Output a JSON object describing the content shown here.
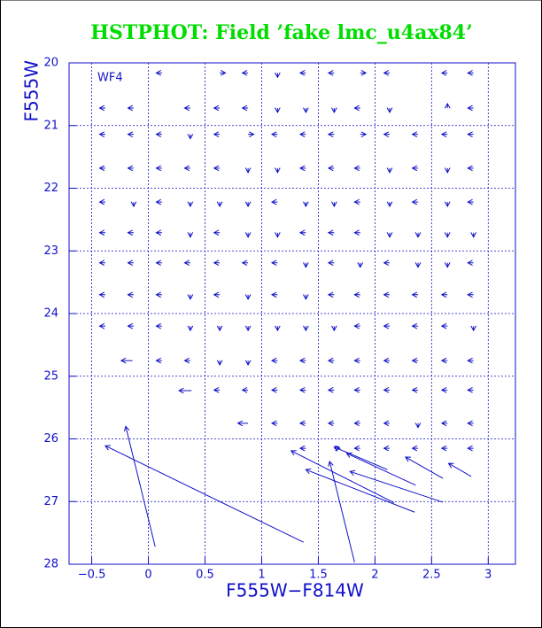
{
  "chart_data": {
    "type": "quiver",
    "title": "HSTPHOT: Field ’fake lmc_u4ax84’",
    "x_label": "F555W−F814W",
    "y_label": "F555W",
    "annotation": "WF4",
    "color": "#1010c8",
    "title_color": "#00dd00",
    "grid": true,
    "xlim": [
      -0.7,
      3.24
    ],
    "ylim": [
      28,
      20
    ],
    "xticks": [
      {
        "value": -0.5,
        "label": "−0.5"
      },
      0,
      0.5,
      1,
      1.5,
      2,
      2.5,
      3
    ],
    "yticks": [
      20,
      21,
      22,
      23,
      24,
      25,
      26,
      27,
      28
    ],
    "arrows": [
      {
        "x": 0.12,
        "y": 20.16,
        "u": -0.05,
        "v": 0
      },
      {
        "x": 0.63,
        "y": 20.16,
        "u": 0.05,
        "v": 0
      },
      {
        "x": 0.88,
        "y": 20.16,
        "u": -0.05,
        "v": 0
      },
      {
        "x": 1.14,
        "y": 20.16,
        "u": 0,
        "v": 0.07
      },
      {
        "x": 1.39,
        "y": 20.16,
        "u": -0.05,
        "v": 0
      },
      {
        "x": 1.64,
        "y": 20.16,
        "u": -0.05,
        "v": 0
      },
      {
        "x": 1.87,
        "y": 20.16,
        "u": 0.05,
        "v": 0
      },
      {
        "x": 2.13,
        "y": 20.16,
        "u": -0.05,
        "v": 0
      },
      {
        "x": 2.64,
        "y": 20.16,
        "u": -0.05,
        "v": 0
      },
      {
        "x": 2.87,
        "y": 20.16,
        "u": -0.05,
        "v": 0
      },
      {
        "x": -0.38,
        "y": 20.72,
        "u": -0.05,
        "v": 0
      },
      {
        "x": -0.13,
        "y": 20.72,
        "u": -0.05,
        "v": 0
      },
      {
        "x": 0.37,
        "y": 20.72,
        "u": -0.05,
        "v": 0
      },
      {
        "x": 0.63,
        "y": 20.72,
        "u": -0.05,
        "v": 0
      },
      {
        "x": 0.88,
        "y": 20.72,
        "u": -0.05,
        "v": 0
      },
      {
        "x": 1.14,
        "y": 20.72,
        "u": 0,
        "v": 0.07
      },
      {
        "x": 1.39,
        "y": 20.72,
        "u": 0,
        "v": 0.07
      },
      {
        "x": 1.64,
        "y": 20.72,
        "u": 0,
        "v": 0.07
      },
      {
        "x": 1.87,
        "y": 20.72,
        "u": -0.05,
        "v": 0
      },
      {
        "x": 2.13,
        "y": 20.72,
        "u": 0,
        "v": 0.07
      },
      {
        "x": 2.64,
        "y": 20.72,
        "u": 0,
        "v": -0.07
      },
      {
        "x": 2.87,
        "y": 20.72,
        "u": -0.05,
        "v": 0
      },
      {
        "x": -0.38,
        "y": 21.14,
        "u": -0.05,
        "v": 0
      },
      {
        "x": -0.13,
        "y": 21.14,
        "u": -0.05,
        "v": 0
      },
      {
        "x": 0.12,
        "y": 21.14,
        "u": -0.05,
        "v": 0
      },
      {
        "x": 0.37,
        "y": 21.14,
        "u": 0,
        "v": 0.07
      },
      {
        "x": 0.63,
        "y": 21.14,
        "u": -0.05,
        "v": 0
      },
      {
        "x": 0.88,
        "y": 21.14,
        "u": 0.05,
        "v": 0
      },
      {
        "x": 1.14,
        "y": 21.14,
        "u": -0.05,
        "v": 0
      },
      {
        "x": 1.39,
        "y": 21.14,
        "u": -0.05,
        "v": 0
      },
      {
        "x": 1.64,
        "y": 21.14,
        "u": -0.05,
        "v": 0
      },
      {
        "x": 1.87,
        "y": 21.14,
        "u": 0.05,
        "v": 0
      },
      {
        "x": 2.13,
        "y": 21.14,
        "u": -0.05,
        "v": 0
      },
      {
        "x": 2.38,
        "y": 21.14,
        "u": -0.05,
        "v": 0
      },
      {
        "x": 2.64,
        "y": 21.14,
        "u": -0.05,
        "v": 0
      },
      {
        "x": 2.87,
        "y": 21.14,
        "u": -0.05,
        "v": 0
      },
      {
        "x": -0.38,
        "y": 21.68,
        "u": -0.05,
        "v": 0
      },
      {
        "x": -0.13,
        "y": 21.68,
        "u": -0.05,
        "v": 0
      },
      {
        "x": 0.12,
        "y": 21.68,
        "u": -0.05,
        "v": 0
      },
      {
        "x": 0.37,
        "y": 21.68,
        "u": -0.05,
        "v": 0
      },
      {
        "x": 0.63,
        "y": 21.68,
        "u": -0.05,
        "v": 0
      },
      {
        "x": 0.88,
        "y": 21.68,
        "u": 0,
        "v": 0.07
      },
      {
        "x": 1.14,
        "y": 21.68,
        "u": 0,
        "v": 0.07
      },
      {
        "x": 1.39,
        "y": 21.68,
        "u": -0.05,
        "v": 0
      },
      {
        "x": 1.64,
        "y": 21.68,
        "u": -0.05,
        "v": 0
      },
      {
        "x": 1.87,
        "y": 21.68,
        "u": -0.05,
        "v": 0
      },
      {
        "x": 2.13,
        "y": 21.68,
        "u": 0,
        "v": 0.07
      },
      {
        "x": 2.38,
        "y": 21.68,
        "u": -0.05,
        "v": 0
      },
      {
        "x": 2.64,
        "y": 21.68,
        "u": 0,
        "v": 0.07
      },
      {
        "x": 2.87,
        "y": 21.68,
        "u": -0.05,
        "v": 0
      },
      {
        "x": -0.38,
        "y": 22.22,
        "u": -0.05,
        "v": 0
      },
      {
        "x": -0.13,
        "y": 22.22,
        "u": 0,
        "v": 0.07
      },
      {
        "x": 0.12,
        "y": 22.22,
        "u": -0.05,
        "v": 0
      },
      {
        "x": 0.37,
        "y": 22.22,
        "u": 0,
        "v": 0.07
      },
      {
        "x": 0.63,
        "y": 22.22,
        "u": 0,
        "v": 0.07
      },
      {
        "x": 0.88,
        "y": 22.22,
        "u": 0,
        "v": 0.07
      },
      {
        "x": 1.14,
        "y": 22.22,
        "u": -0.05,
        "v": 0
      },
      {
        "x": 1.39,
        "y": 22.22,
        "u": 0,
        "v": 0.07
      },
      {
        "x": 1.64,
        "y": 22.22,
        "u": 0,
        "v": 0.07
      },
      {
        "x": 1.87,
        "y": 22.22,
        "u": -0.05,
        "v": 0
      },
      {
        "x": 2.13,
        "y": 22.22,
        "u": 0,
        "v": 0.07
      },
      {
        "x": 2.38,
        "y": 22.22,
        "u": -0.05,
        "v": 0
      },
      {
        "x": 2.64,
        "y": 22.22,
        "u": 0,
        "v": 0.07
      },
      {
        "x": 2.87,
        "y": 22.22,
        "u": -0.05,
        "v": 0
      },
      {
        "x": -0.38,
        "y": 22.71,
        "u": -0.05,
        "v": 0
      },
      {
        "x": -0.13,
        "y": 22.71,
        "u": -0.05,
        "v": 0
      },
      {
        "x": 0.12,
        "y": 22.71,
        "u": -0.05,
        "v": 0
      },
      {
        "x": 0.37,
        "y": 22.71,
        "u": 0,
        "v": 0.07
      },
      {
        "x": 0.63,
        "y": 22.71,
        "u": -0.05,
        "v": 0
      },
      {
        "x": 0.88,
        "y": 22.71,
        "u": 0,
        "v": 0.07
      },
      {
        "x": 1.14,
        "y": 22.71,
        "u": 0,
        "v": 0.07
      },
      {
        "x": 1.39,
        "y": 22.71,
        "u": -0.05,
        "v": 0
      },
      {
        "x": 1.64,
        "y": 22.71,
        "u": -0.05,
        "v": 0
      },
      {
        "x": 1.87,
        "y": 22.71,
        "u": -0.05,
        "v": 0
      },
      {
        "x": 2.13,
        "y": 22.71,
        "u": 0,
        "v": 0.07
      },
      {
        "x": 2.38,
        "y": 22.71,
        "u": 0,
        "v": 0.07
      },
      {
        "x": 2.64,
        "y": 22.71,
        "u": 0,
        "v": 0.07
      },
      {
        "x": 2.87,
        "y": 22.71,
        "u": 0,
        "v": 0.07
      },
      {
        "x": -0.38,
        "y": 23.19,
        "u": -0.05,
        "v": 0
      },
      {
        "x": -0.13,
        "y": 23.19,
        "u": -0.05,
        "v": 0
      },
      {
        "x": 0.12,
        "y": 23.19,
        "u": -0.05,
        "v": 0
      },
      {
        "x": 0.37,
        "y": 23.19,
        "u": -0.05,
        "v": 0
      },
      {
        "x": 0.63,
        "y": 23.19,
        "u": -0.05,
        "v": 0
      },
      {
        "x": 0.88,
        "y": 23.19,
        "u": -0.05,
        "v": 0
      },
      {
        "x": 1.14,
        "y": 23.19,
        "u": -0.05,
        "v": 0
      },
      {
        "x": 1.39,
        "y": 23.19,
        "u": 0,
        "v": 0.07
      },
      {
        "x": 1.64,
        "y": 23.19,
        "u": -0.05,
        "v": 0
      },
      {
        "x": 1.87,
        "y": 23.19,
        "u": 0,
        "v": 0.07
      },
      {
        "x": 2.13,
        "y": 23.19,
        "u": -0.05,
        "v": 0
      },
      {
        "x": 2.38,
        "y": 23.19,
        "u": 0,
        "v": 0.07
      },
      {
        "x": 2.64,
        "y": 23.19,
        "u": 0,
        "v": 0.07
      },
      {
        "x": 2.87,
        "y": 23.19,
        "u": -0.05,
        "v": 0
      },
      {
        "x": -0.38,
        "y": 23.7,
        "u": -0.05,
        "v": 0
      },
      {
        "x": -0.13,
        "y": 23.7,
        "u": -0.05,
        "v": 0
      },
      {
        "x": 0.12,
        "y": 23.7,
        "u": -0.05,
        "v": 0
      },
      {
        "x": 0.37,
        "y": 23.7,
        "u": 0,
        "v": 0.07
      },
      {
        "x": 0.63,
        "y": 23.7,
        "u": -0.05,
        "v": 0
      },
      {
        "x": 0.88,
        "y": 23.7,
        "u": 0,
        "v": 0.07
      },
      {
        "x": 1.14,
        "y": 23.7,
        "u": -0.05,
        "v": 0
      },
      {
        "x": 1.39,
        "y": 23.7,
        "u": 0,
        "v": 0.07
      },
      {
        "x": 1.64,
        "y": 23.7,
        "u": -0.05,
        "v": 0
      },
      {
        "x": 1.87,
        "y": 23.7,
        "u": -0.05,
        "v": 0
      },
      {
        "x": 2.13,
        "y": 23.7,
        "u": -0.05,
        "v": 0
      },
      {
        "x": 2.38,
        "y": 23.7,
        "u": -0.05,
        "v": 0
      },
      {
        "x": 2.64,
        "y": 23.7,
        "u": -0.05,
        "v": 0
      },
      {
        "x": 2.87,
        "y": 23.7,
        "u": -0.05,
        "v": 0
      },
      {
        "x": -0.38,
        "y": 24.2,
        "u": -0.05,
        "v": 0
      },
      {
        "x": -0.13,
        "y": 24.2,
        "u": -0.05,
        "v": 0
      },
      {
        "x": 0.12,
        "y": 24.2,
        "u": -0.05,
        "v": 0
      },
      {
        "x": 0.37,
        "y": 24.2,
        "u": 0,
        "v": 0.07
      },
      {
        "x": 0.63,
        "y": 24.2,
        "u": 0,
        "v": 0.07
      },
      {
        "x": 0.88,
        "y": 24.2,
        "u": 0,
        "v": 0.07
      },
      {
        "x": 1.14,
        "y": 24.2,
        "u": 0,
        "v": 0.07
      },
      {
        "x": 1.39,
        "y": 24.2,
        "u": 0,
        "v": 0.07
      },
      {
        "x": 1.64,
        "y": 24.2,
        "u": 0,
        "v": 0.07
      },
      {
        "x": 1.87,
        "y": 24.2,
        "u": -0.05,
        "v": 0
      },
      {
        "x": 2.13,
        "y": 24.2,
        "u": -0.05,
        "v": 0
      },
      {
        "x": 2.38,
        "y": 24.2,
        "u": -0.05,
        "v": 0
      },
      {
        "x": 2.64,
        "y": 24.2,
        "u": -0.05,
        "v": 0
      },
      {
        "x": 2.87,
        "y": 24.2,
        "u": 0,
        "v": 0.07
      },
      {
        "x": -0.14,
        "y": 24.75,
        "u": -0.1,
        "v": 0
      },
      {
        "x": 0.12,
        "y": 24.75,
        "u": -0.05,
        "v": 0
      },
      {
        "x": 0.37,
        "y": 24.75,
        "u": -0.05,
        "v": 0
      },
      {
        "x": 0.63,
        "y": 24.75,
        "u": 0,
        "v": 0.07
      },
      {
        "x": 0.88,
        "y": 24.75,
        "u": 0,
        "v": 0.07
      },
      {
        "x": 1.14,
        "y": 24.75,
        "u": -0.05,
        "v": 0
      },
      {
        "x": 1.39,
        "y": 24.75,
        "u": -0.05,
        "v": 0
      },
      {
        "x": 1.64,
        "y": 24.75,
        "u": -0.05,
        "v": 0
      },
      {
        "x": 1.87,
        "y": 24.75,
        "u": -0.05,
        "v": 0
      },
      {
        "x": 2.13,
        "y": 24.75,
        "u": -0.05,
        "v": 0
      },
      {
        "x": 2.38,
        "y": 24.75,
        "u": -0.05,
        "v": 0
      },
      {
        "x": 2.64,
        "y": 24.75,
        "u": -0.05,
        "v": 0
      },
      {
        "x": 2.87,
        "y": 24.75,
        "u": -0.05,
        "v": 0
      },
      {
        "x": 0.38,
        "y": 25.23,
        "u": -0.11,
        "v": 0
      },
      {
        "x": 0.63,
        "y": 25.22,
        "u": -0.05,
        "v": 0
      },
      {
        "x": 0.88,
        "y": 25.22,
        "u": -0.05,
        "v": 0
      },
      {
        "x": 1.14,
        "y": 25.22,
        "u": -0.05,
        "v": 0
      },
      {
        "x": 1.39,
        "y": 25.22,
        "u": -0.05,
        "v": 0
      },
      {
        "x": 1.64,
        "y": 25.22,
        "u": -0.05,
        "v": 0
      },
      {
        "x": 1.87,
        "y": 25.22,
        "u": -0.05,
        "v": 0
      },
      {
        "x": 2.13,
        "y": 25.22,
        "u": -0.05,
        "v": 0
      },
      {
        "x": 2.38,
        "y": 25.22,
        "u": -0.05,
        "v": 0
      },
      {
        "x": 2.64,
        "y": 25.22,
        "u": -0.05,
        "v": 0
      },
      {
        "x": 2.87,
        "y": 25.22,
        "u": -0.05,
        "v": 0
      },
      {
        "x": 0.88,
        "y": 25.75,
        "u": -0.09,
        "v": 0
      },
      {
        "x": 1.14,
        "y": 25.75,
        "u": -0.05,
        "v": 0
      },
      {
        "x": 1.39,
        "y": 25.75,
        "u": -0.05,
        "v": 0
      },
      {
        "x": 1.64,
        "y": 25.75,
        "u": -0.05,
        "v": 0
      },
      {
        "x": 1.87,
        "y": 25.75,
        "u": -0.05,
        "v": 0
      },
      {
        "x": 2.13,
        "y": 25.75,
        "u": -0.05,
        "v": 0
      },
      {
        "x": 2.38,
        "y": 25.75,
        "u": 0,
        "v": 0.07
      },
      {
        "x": 2.64,
        "y": 25.75,
        "u": -0.05,
        "v": 0
      },
      {
        "x": 2.87,
        "y": 25.75,
        "u": -0.05,
        "v": 0
      },
      {
        "x": 1.39,
        "y": 26.15,
        "u": -0.05,
        "v": 0
      },
      {
        "x": 1.64,
        "y": 26.15,
        "u": 0.05,
        "v": 0
      },
      {
        "x": 1.87,
        "y": 26.15,
        "u": -0.05,
        "v": 0
      },
      {
        "x": 2.13,
        "y": 26.15,
        "u": -0.05,
        "v": 0
      },
      {
        "x": 2.38,
        "y": 26.15,
        "u": -0.05,
        "v": 0
      },
      {
        "x": 2.64,
        "y": 26.15,
        "u": -0.05,
        "v": 0
      },
      {
        "x": 2.87,
        "y": 26.15,
        "u": -0.05,
        "v": 0
      },
      {
        "x": 0.06,
        "y": 27.72,
        "u": -0.26,
        "v": -1.92
      },
      {
        "x": 1.37,
        "y": 27.65,
        "u": -1.75,
        "v": -1.54
      },
      {
        "x": 1.82,
        "y": 27.97,
        "u": -0.22,
        "v": -1.61
      },
      {
        "x": 2.17,
        "y": 27.02,
        "u": -0.91,
        "v": -0.83
      },
      {
        "x": 2.35,
        "y": 27.17,
        "u": -0.96,
        "v": -0.68
      },
      {
        "x": 2.6,
        "y": 27.01,
        "u": -0.82,
        "v": -0.49
      },
      {
        "x": 2.36,
        "y": 26.74,
        "u": -0.61,
        "v": -0.51
      },
      {
        "x": 2.11,
        "y": 26.49,
        "u": -0.47,
        "v": -0.36
      },
      {
        "x": 2.6,
        "y": 26.63,
        "u": -0.33,
        "v": -0.34
      },
      {
        "x": 2.85,
        "y": 26.6,
        "u": -0.2,
        "v": -0.21
      }
    ]
  }
}
